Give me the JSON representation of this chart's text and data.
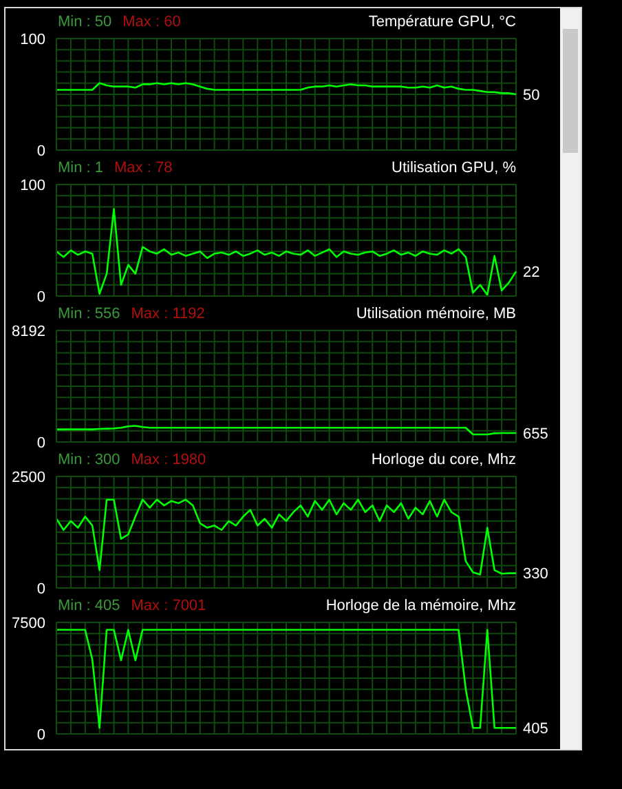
{
  "chart_data": [
    {
      "type": "line",
      "title": "Température GPU, °C",
      "annotations": [
        "Min : 50",
        "Max : 60",
        "50"
      ],
      "grid": true,
      "ylim": [
        0,
        100
      ],
      "yticks": [
        0,
        {
          "value": 10,
          "label": null
        },
        {
          "value": 20,
          "label": null
        },
        {
          "value": 30,
          "label": null
        },
        {
          "value": 40,
          "label": null
        },
        {
          "value": 50,
          "label": null
        },
        {
          "value": 60,
          "label": null
        },
        {
          "value": 70,
          "label": null
        },
        {
          "value": 80,
          "label": null
        },
        {
          "value": 90,
          "label": null
        },
        100
      ],
      "categories": [
        null,
        null,
        null,
        null,
        null,
        null,
        null,
        null,
        null,
        null,
        null,
        null,
        null,
        null,
        null,
        null,
        null,
        null,
        null,
        null,
        null,
        null,
        null,
        null,
        null,
        null,
        null,
        null,
        null,
        null,
        null,
        null,
        null,
        null,
        null,
        null,
        null,
        null,
        null,
        null,
        null,
        null,
        null,
        null,
        null,
        null,
        null,
        null,
        null,
        null,
        null,
        null,
        null,
        null,
        null,
        null,
        null,
        null,
        null,
        null,
        null,
        null,
        null,
        null,
        null
      ],
      "series": [
        {
          "color": "#00ff00",
          "values": [
            54,
            54,
            54,
            54,
            54,
            54,
            60,
            58,
            57,
            57,
            57,
            56,
            59,
            59,
            60,
            59,
            60,
            59,
            60,
            59,
            57,
            55,
            54,
            54,
            54,
            54,
            54,
            54,
            54,
            54,
            54,
            54,
            54,
            54,
            54,
            56,
            57,
            57,
            58,
            57,
            58,
            59,
            58,
            58,
            57,
            57,
            57,
            57,
            57,
            56,
            56,
            57,
            56,
            58,
            56,
            57,
            55,
            54,
            54,
            53,
            52,
            52,
            51,
            51,
            50
          ]
        }
      ]
    },
    {
      "type": "line",
      "title": "Utilisation GPU, %",
      "annotations": [
        "Min : 1",
        "Max : 78",
        "22"
      ],
      "grid": true,
      "ylim": [
        0,
        100
      ],
      "yticks": [
        0,
        {
          "value": 10,
          "label": null
        },
        {
          "value": 20,
          "label": null
        },
        {
          "value": 30,
          "label": null
        },
        {
          "value": 40,
          "label": null
        },
        {
          "value": 50,
          "label": null
        },
        {
          "value": 60,
          "label": null
        },
        {
          "value": 70,
          "label": null
        },
        {
          "value": 80,
          "label": null
        },
        {
          "value": 90,
          "label": null
        },
        100
      ],
      "categories": [
        null,
        null,
        null,
        null,
        null,
        null,
        null,
        null,
        null,
        null,
        null,
        null,
        null,
        null,
        null,
        null,
        null,
        null,
        null,
        null,
        null,
        null,
        null,
        null,
        null,
        null,
        null,
        null,
        null,
        null,
        null,
        null,
        null,
        null,
        null,
        null,
        null,
        null,
        null,
        null,
        null,
        null,
        null,
        null,
        null,
        null,
        null,
        null,
        null,
        null,
        null,
        null,
        null,
        null,
        null,
        null,
        null,
        null,
        null,
        null,
        null,
        null,
        null,
        null,
        null
      ],
      "series": [
        {
          "color": "#00ff00",
          "values": [
            40,
            35,
            41,
            37,
            40,
            38,
            2,
            20,
            78,
            10,
            28,
            20,
            44,
            40,
            38,
            42,
            37,
            39,
            36,
            38,
            40,
            34,
            38,
            39,
            37,
            40,
            36,
            38,
            41,
            37,
            39,
            36,
            40,
            38,
            37,
            41,
            36,
            39,
            42,
            35,
            40,
            38,
            37,
            39,
            40,
            36,
            38,
            41,
            37,
            39,
            36,
            40,
            38,
            37,
            41,
            38,
            42,
            35,
            3,
            10,
            1,
            36,
            5,
            12,
            22
          ]
        }
      ]
    },
    {
      "type": "line",
      "title": "Utilisation mémoire, MB",
      "annotations": [
        "Min : 556",
        "Max : 1192",
        "655"
      ],
      "grid": true,
      "ylim": [
        0,
        8192
      ],
      "yticks": [
        0,
        {
          "value": 819.2,
          "label": null
        },
        {
          "value": 1638.4,
          "label": null
        },
        {
          "value": 2457.6,
          "label": null
        },
        {
          "value": 3276.8,
          "label": null
        },
        {
          "value": 4096,
          "label": null
        },
        {
          "value": 4915.2,
          "label": null
        },
        {
          "value": 5734.4,
          "label": null
        },
        {
          "value": 6553.6,
          "label": null
        },
        {
          "value": 7372.8,
          "label": null
        },
        8192
      ],
      "categories": [
        null,
        null,
        null,
        null,
        null,
        null,
        null,
        null,
        null,
        null,
        null,
        null,
        null,
        null,
        null,
        null,
        null,
        null,
        null,
        null,
        null,
        null,
        null,
        null,
        null,
        null,
        null,
        null,
        null,
        null,
        null,
        null,
        null,
        null,
        null,
        null,
        null,
        null,
        null,
        null,
        null,
        null,
        null,
        null,
        null,
        null,
        null,
        null,
        null,
        null,
        null,
        null,
        null,
        null,
        null,
        null,
        null,
        null,
        null,
        null,
        null,
        null,
        null,
        null,
        null
      ],
      "series": [
        {
          "color": "#00ff00",
          "values": [
            930,
            930,
            930,
            930,
            930,
            930,
            960,
            980,
            1000,
            1050,
            1150,
            1192,
            1100,
            1050,
            1050,
            1050,
            1050,
            1050,
            1050,
            1050,
            1050,
            1050,
            1050,
            1050,
            1050,
            1050,
            1050,
            1050,
            1050,
            1050,
            1050,
            1050,
            1050,
            1050,
            1050,
            1050,
            1050,
            1050,
            1050,
            1050,
            1050,
            1050,
            1050,
            1050,
            1050,
            1050,
            1050,
            1050,
            1050,
            1050,
            1050,
            1050,
            1050,
            1050,
            1050,
            1050,
            1050,
            1050,
            556,
            556,
            556,
            640,
            655,
            655,
            655
          ]
        }
      ]
    },
    {
      "type": "line",
      "title": "Horloge du core, Mhz",
      "annotations": [
        "Min : 300",
        "Max : 1980",
        "330"
      ],
      "grid": true,
      "ylim": [
        0,
        2500
      ],
      "yticks": [
        0,
        {
          "value": 250,
          "label": null
        },
        {
          "value": 500,
          "label": null
        },
        {
          "value": 750,
          "label": null
        },
        {
          "value": 1000,
          "label": null
        },
        {
          "value": 1250,
          "label": null
        },
        {
          "value": 1500,
          "label": null
        },
        {
          "value": 1750,
          "label": null
        },
        {
          "value": 2000,
          "label": null
        },
        {
          "value": 2250,
          "label": null
        },
        2500
      ],
      "categories": [
        null,
        null,
        null,
        null,
        null,
        null,
        null,
        null,
        null,
        null,
        null,
        null,
        null,
        null,
        null,
        null,
        null,
        null,
        null,
        null,
        null,
        null,
        null,
        null,
        null,
        null,
        null,
        null,
        null,
        null,
        null,
        null,
        null,
        null,
        null,
        null,
        null,
        null,
        null,
        null,
        null,
        null,
        null,
        null,
        null,
        null,
        null,
        null,
        null,
        null,
        null,
        null,
        null,
        null,
        null,
        null,
        null,
        null,
        null,
        null,
        null,
        null,
        null,
        null,
        null
      ],
      "series": [
        {
          "color": "#00ff00",
          "values": [
            1550,
            1300,
            1500,
            1350,
            1600,
            1400,
            400,
            1980,
            1980,
            1100,
            1200,
            1600,
            1980,
            1800,
            1980,
            1850,
            1950,
            1900,
            1980,
            1850,
            1450,
            1350,
            1400,
            1300,
            1500,
            1400,
            1600,
            1750,
            1400,
            1550,
            1350,
            1650,
            1500,
            1700,
            1850,
            1600,
            1950,
            1750,
            1980,
            1650,
            1900,
            1750,
            1980,
            1700,
            1850,
            1500,
            1850,
            1700,
            1900,
            1550,
            1800,
            1650,
            1950,
            1600,
            1980,
            1700,
            1600,
            600,
            350,
            300,
            1350,
            400,
            320,
            330,
            330
          ]
        }
      ]
    },
    {
      "type": "line",
      "title": "Horloge de la mémoire, Mhz",
      "annotations": [
        "Min : 405",
        "Max : 7001",
        "405"
      ],
      "grid": true,
      "ylim": [
        0,
        7500
      ],
      "yticks": [
        0,
        {
          "value": 750,
          "label": null
        },
        {
          "value": 1500,
          "label": null
        },
        {
          "value": 2250,
          "label": null
        },
        {
          "value": 3000,
          "label": null
        },
        {
          "value": 3750,
          "label": null
        },
        {
          "value": 4500,
          "label": null
        },
        {
          "value": 5250,
          "label": null
        },
        {
          "value": 6000,
          "label": null
        },
        {
          "value": 6750,
          "label": null
        },
        7500
      ],
      "categories": [
        null,
        null,
        null,
        null,
        null,
        null,
        null,
        null,
        null,
        null,
        null,
        null,
        null,
        null,
        null,
        null,
        null,
        null,
        null,
        null,
        null,
        null,
        null,
        null,
        null,
        null,
        null,
        null,
        null,
        null,
        null,
        null,
        null,
        null,
        null,
        null,
        null,
        null,
        null,
        null,
        null,
        null,
        null,
        null,
        null,
        null,
        null,
        null,
        null,
        null,
        null,
        null,
        null,
        null,
        null,
        null,
        null,
        null,
        null,
        null,
        null,
        null,
        null,
        null,
        null
      ],
      "series": [
        {
          "color": "#00ff00",
          "values": [
            7001,
            7001,
            7001,
            7001,
            7001,
            5000,
            405,
            7001,
            7001,
            4950,
            7001,
            4950,
            7001,
            7001,
            7001,
            7001,
            7001,
            7001,
            7001,
            7001,
            7001,
            7001,
            7001,
            7001,
            7001,
            7001,
            7001,
            7001,
            7001,
            7001,
            7001,
            7001,
            7001,
            7001,
            7001,
            7001,
            7001,
            7001,
            7001,
            7001,
            7001,
            7001,
            7001,
            7001,
            7001,
            7001,
            7001,
            7001,
            7001,
            7001,
            7001,
            7001,
            7001,
            7001,
            7001,
            7001,
            7001,
            3000,
            405,
            405,
            7001,
            405,
            405,
            405,
            405
          ]
        }
      ]
    }
  ]
}
